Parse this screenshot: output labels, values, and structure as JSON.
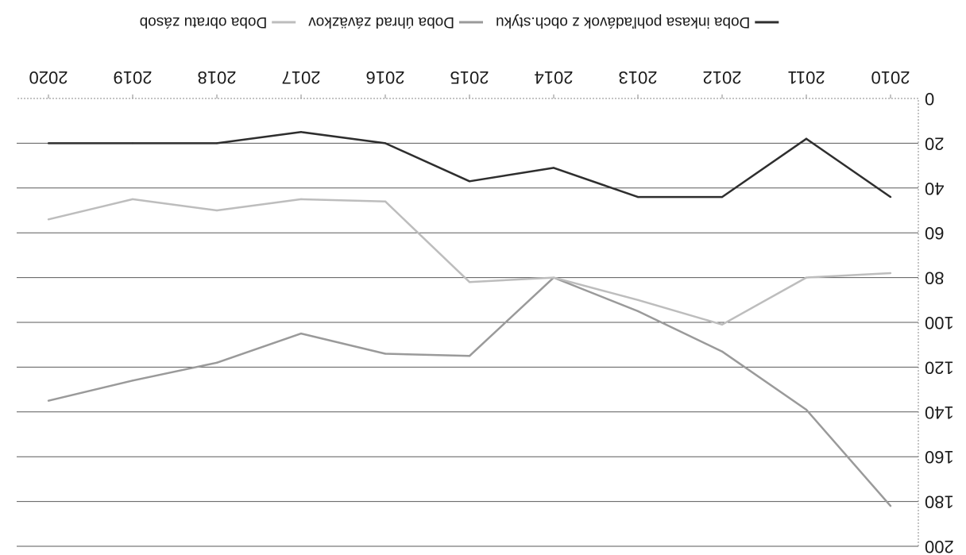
{
  "chart_data": {
    "type": "line",
    "orientation_note": "",
    "categories": [
      "2010",
      "2011",
      "2012",
      "2013",
      "2014",
      "2015",
      "2016",
      "2017",
      "2018",
      "2019",
      "2020"
    ],
    "ylim": [
      0,
      200
    ],
    "yticks": [
      "0",
      "20",
      "40",
      "60",
      "80",
      "100",
      "120",
      "140",
      "160",
      "180",
      "200"
    ],
    "grid": true,
    "legend_position": "bottom",
    "series": [
      {
        "name": "Doba inkasa pohľadávok z obch.styku",
        "color": "#2e2e2e",
        "values": [
          44,
          18,
          44,
          44,
          31,
          37,
          20,
          15,
          20,
          20,
          20
        ]
      },
      {
        "name": "Doba úhrad záväzkov",
        "color": "#9a9a9a",
        "values": [
          182,
          139,
          113,
          95,
          80,
          115,
          114,
          105,
          118,
          126,
          135
        ]
      },
      {
        "name": "Doba obratu zásob",
        "color": "#bdbdbd",
        "values": [
          78,
          80,
          101,
          90,
          80,
          82,
          46,
          45,
          50,
          45,
          54
        ]
      }
    ]
  }
}
